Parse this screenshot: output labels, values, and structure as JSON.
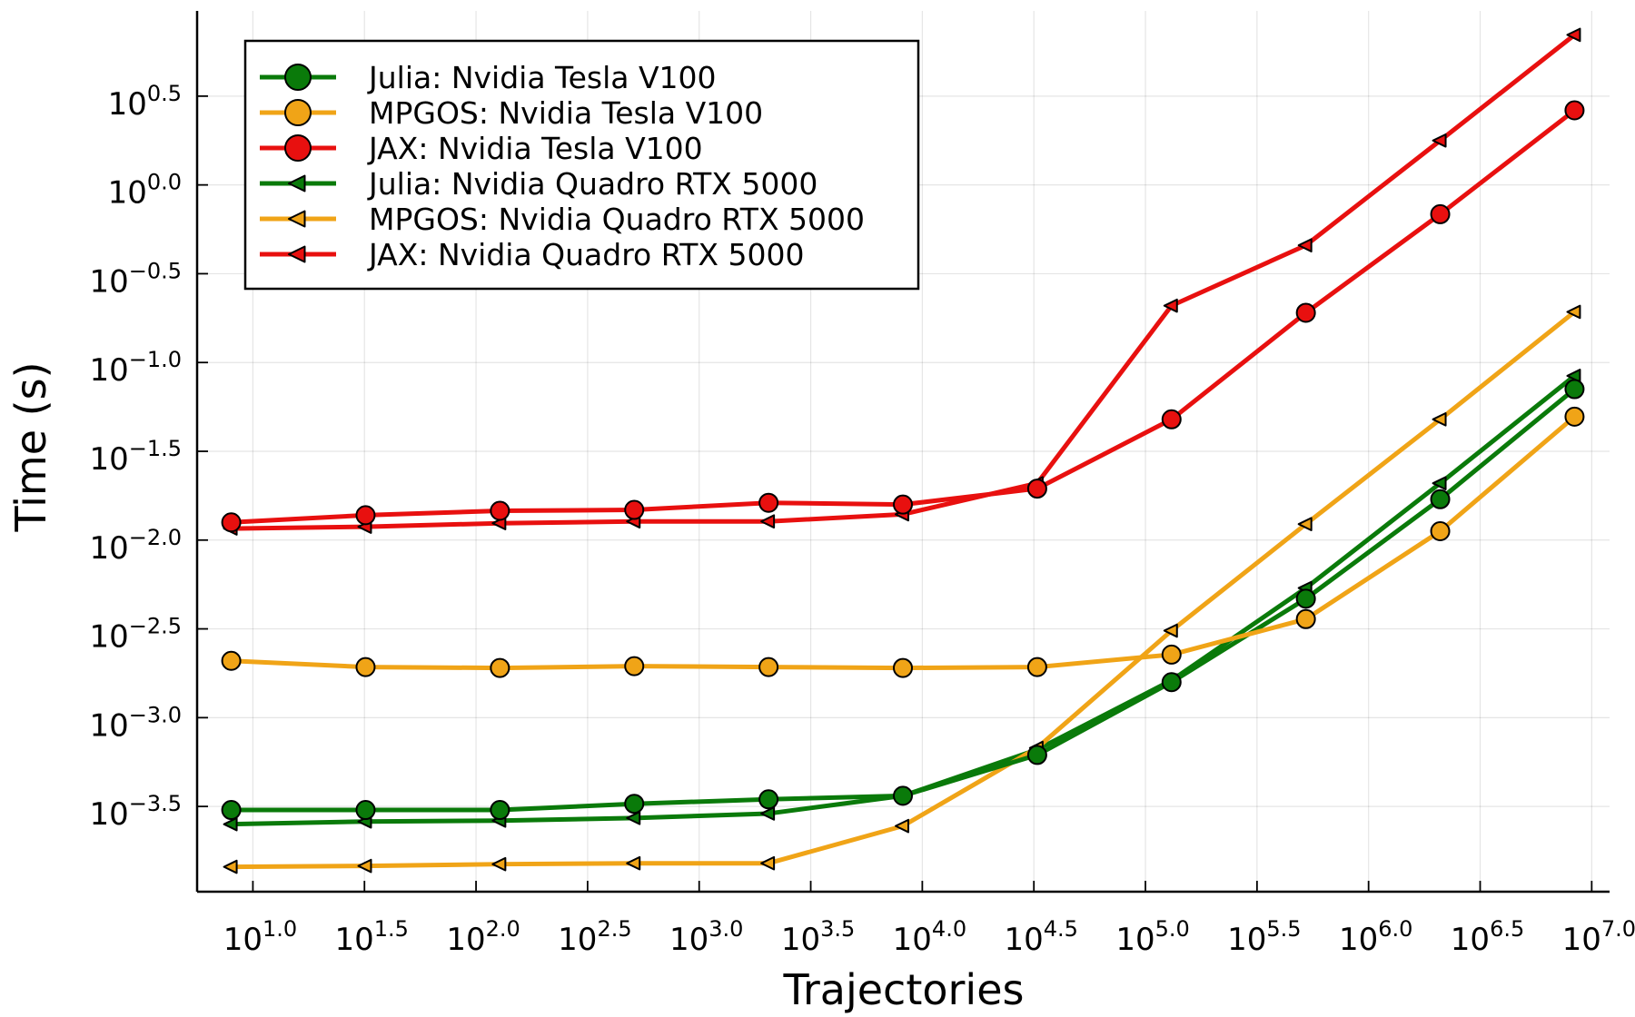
{
  "chart_data": {
    "type": "line",
    "title": "",
    "xlabel": "Trajectories",
    "ylabel": "Time (s)",
    "x_scale": "log10",
    "y_scale": "log10",
    "xlim_log10": [
      0.75,
      7.08
    ],
    "ylim_log10": [
      -3.98,
      0.98
    ],
    "grid": true,
    "legend_position": "top-left",
    "x_ticks": [
      {
        "base": "10",
        "exp": "1.0",
        "log10": 1.0
      },
      {
        "base": "10",
        "exp": "1.5",
        "log10": 1.5
      },
      {
        "base": "10",
        "exp": "2.0",
        "log10": 2.0
      },
      {
        "base": "10",
        "exp": "2.5",
        "log10": 2.5
      },
      {
        "base": "10",
        "exp": "3.0",
        "log10": 3.0
      },
      {
        "base": "10",
        "exp": "3.5",
        "log10": 3.5
      },
      {
        "base": "10",
        "exp": "4.0",
        "log10": 4.0
      },
      {
        "base": "10",
        "exp": "4.5",
        "log10": 4.5
      },
      {
        "base": "10",
        "exp": "5.0",
        "log10": 5.0
      },
      {
        "base": "10",
        "exp": "5.5",
        "log10": 5.5
      },
      {
        "base": "10",
        "exp": "6.0",
        "log10": 6.0
      },
      {
        "base": "10",
        "exp": "6.5",
        "log10": 6.5
      },
      {
        "base": "10",
        "exp": "7.0",
        "log10": 7.0
      }
    ],
    "y_ticks": [
      {
        "base": "10",
        "exp": "0.5",
        "log10": 0.5
      },
      {
        "base": "10",
        "exp": "0.0",
        "log10": 0.0
      },
      {
        "base": "10",
        "exp": "−0.5",
        "log10": -0.5
      },
      {
        "base": "10",
        "exp": "−1.0",
        "log10": -1.0
      },
      {
        "base": "10",
        "exp": "−1.5",
        "log10": -1.5
      },
      {
        "base": "10",
        "exp": "−2.0",
        "log10": -2.0
      },
      {
        "base": "10",
        "exp": "−2.5",
        "log10": -2.5
      },
      {
        "base": "10",
        "exp": "−3.0",
        "log10": -3.0
      },
      {
        "base": "10",
        "exp": "−3.5",
        "log10": -3.5
      }
    ],
    "x_log10": [
      0.903,
      1.505,
      2.107,
      2.709,
      3.311,
      3.913,
      4.515,
      5.117,
      5.719,
      6.321,
      6.923
    ],
    "series": [
      {
        "name": "Julia: Nvidia Tesla V100",
        "color": "#0a7a0a",
        "marker": "circle",
        "y_log10": [
          -3.52,
          -3.52,
          -3.52,
          -3.485,
          -3.46,
          -3.44,
          -3.21,
          -2.8,
          -2.33,
          -1.77,
          -1.15
        ]
      },
      {
        "name": "MPGOS: Nvidia Tesla V100",
        "color": "#f0a417",
        "marker": "circle",
        "y_log10": [
          -2.68,
          -2.715,
          -2.72,
          -2.71,
          -2.715,
          -2.72,
          -2.715,
          -2.645,
          -2.445,
          -1.95,
          -1.305
        ]
      },
      {
        "name": "JAX: Nvidia Tesla V100",
        "color": "#e8100f",
        "marker": "circle",
        "y_log10": [
          -1.9,
          -1.86,
          -1.835,
          -1.83,
          -1.79,
          -1.8,
          -1.71,
          -1.32,
          -0.72,
          -0.165,
          0.42
        ]
      },
      {
        "name": "Julia: Nvidia Quadro RTX 5000",
        "color": "#0a7a0a",
        "marker": "triangle-left",
        "y_log10": [
          -3.6,
          -3.585,
          -3.58,
          -3.565,
          -3.54,
          -3.44,
          -3.18,
          -2.79,
          -2.27,
          -1.68,
          -1.075
        ]
      },
      {
        "name": "MPGOS: Nvidia Quadro RTX 5000",
        "color": "#f0a417",
        "marker": "triangle-left",
        "y_log10": [
          -3.84,
          -3.835,
          -3.825,
          -3.82,
          -3.82,
          -3.61,
          -3.17,
          -2.51,
          -1.91,
          -1.32,
          -0.715
        ]
      },
      {
        "name": "JAX: Nvidia Quadro RTX 5000",
        "color": "#e8100f",
        "marker": "triangle-left",
        "y_log10": [
          -1.935,
          -1.925,
          -1.905,
          -1.895,
          -1.895,
          -1.855,
          -1.68,
          -0.68,
          -0.34,
          0.25,
          0.845
        ]
      }
    ]
  }
}
